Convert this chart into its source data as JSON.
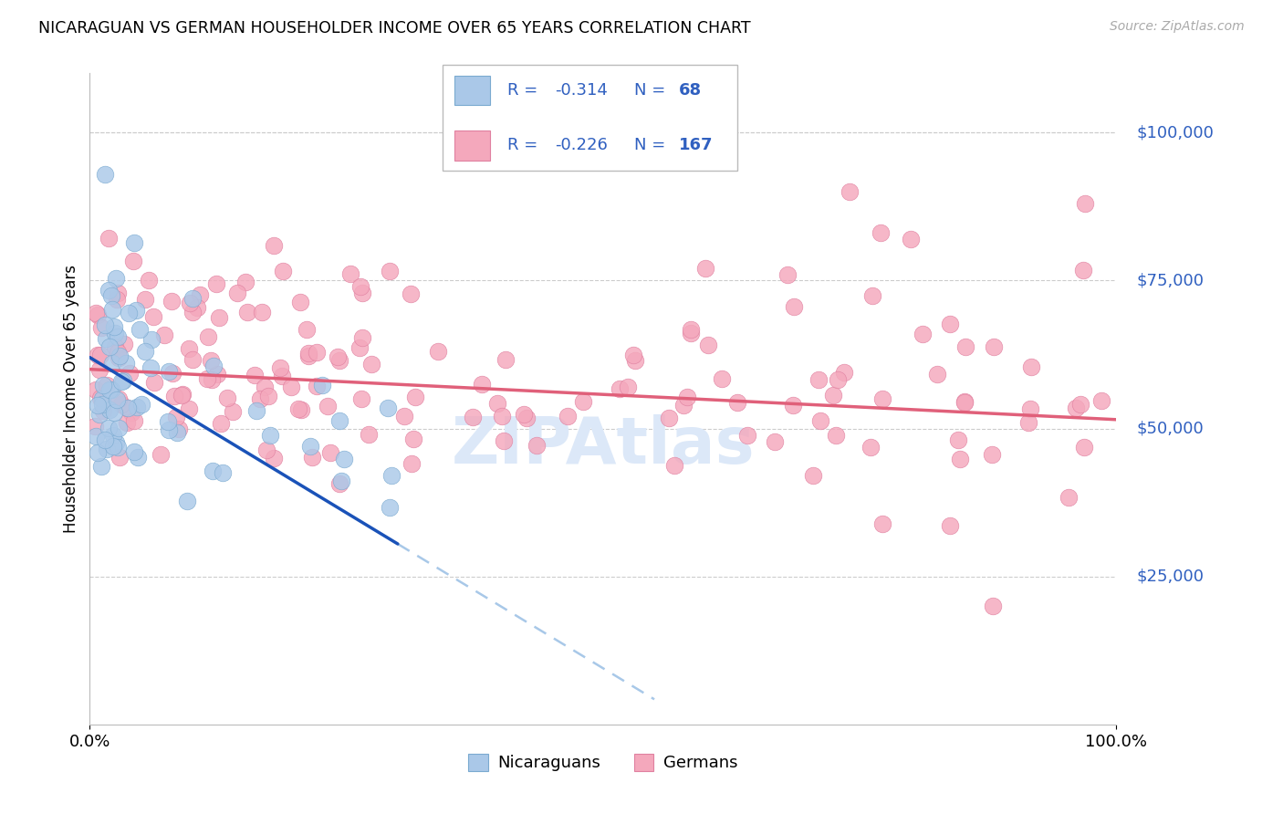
{
  "title": "NICARAGUAN VS GERMAN HOUSEHOLDER INCOME OVER 65 YEARS CORRELATION CHART",
  "source": "Source: ZipAtlas.com",
  "ylabel": "Householder Income Over 65 years",
  "ytick_labels": [
    "$25,000",
    "$50,000",
    "$75,000",
    "$100,000"
  ],
  "ytick_values": [
    25000,
    50000,
    75000,
    100000
  ],
  "ymin": 0,
  "ymax": 110000,
  "xmin": 0.0,
  "xmax": 100.0,
  "nicaraguan_color": "#aac8e8",
  "german_color": "#f4a8bc",
  "nicaraguan_edge": "#7aaad0",
  "german_edge": "#e080a0",
  "trend_blue": "#1a52b8",
  "trend_pink": "#e0607a",
  "trend_dashed_color": "#a8c8e8",
  "legend_text_color": "#3060c0",
  "legend_box_edge": "#bbbbbb",
  "ytick_color": "#3060c0",
  "watermark_color": "#dce8f8",
  "watermark_text": "ZIPAtlas",
  "title_fontsize": 12.5,
  "source_fontsize": 10,
  "ytick_fontsize": 13,
  "xtick_fontsize": 13,
  "legend_label_nic": "Nicaraguans",
  "legend_label_ger": "Germans"
}
